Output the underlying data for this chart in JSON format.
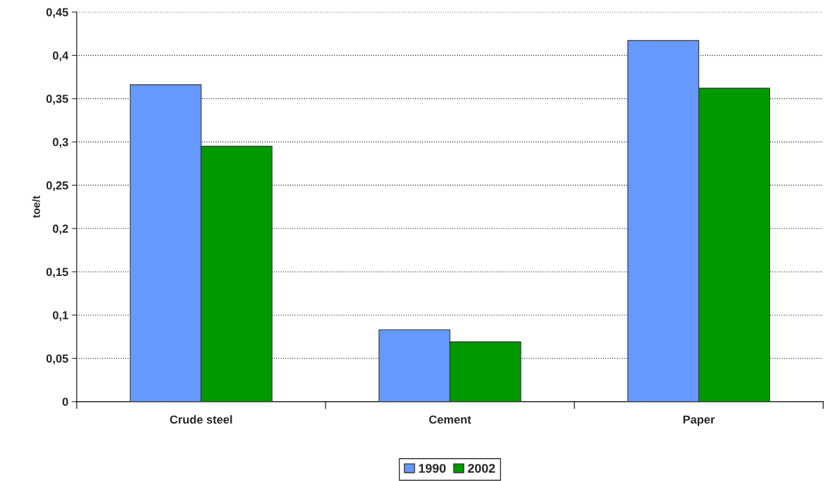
{
  "chart_data": {
    "type": "bar",
    "ylabel": "toe/t",
    "categories": [
      "Crude steel",
      "Cement",
      "Paper"
    ],
    "series": [
      {
        "name": "1990",
        "color": "#6699ff",
        "values": [
          0.366,
          0.083,
          0.417
        ]
      },
      {
        "name": "2002",
        "color": "#009900",
        "values": [
          0.295,
          0.069,
          0.362
        ]
      }
    ],
    "ylim": [
      0,
      0.45
    ],
    "yticks": [
      0,
      {
        "value": 0.05,
        "label": "0,05"
      },
      {
        "value": 0.1,
        "label": "0,1"
      },
      {
        "value": 0.15,
        "label": "0,15"
      },
      {
        "value": 0.2,
        "label": "0,2"
      },
      {
        "value": 0.25,
        "label": "0,25"
      },
      {
        "value": 0.3,
        "label": "0,3"
      },
      {
        "value": 0.35,
        "label": "0,35"
      },
      {
        "value": 0.4,
        "label": "0,4"
      },
      {
        "value": 0.45,
        "label": "0,45"
      }
    ],
    "grid": "y",
    "legend": "bottom"
  }
}
